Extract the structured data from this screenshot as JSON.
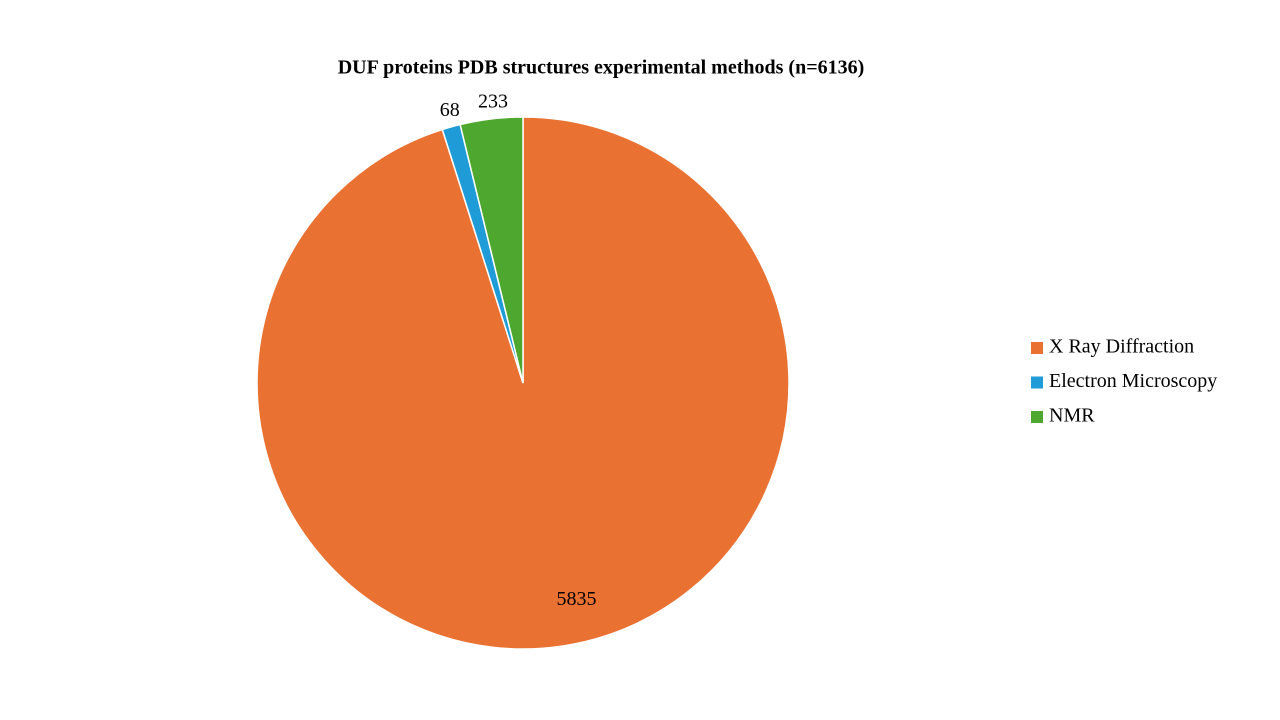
{
  "chart_data": {
    "type": "pie",
    "title": "DUF proteins PDB structures experimental methods (n=6136)",
    "categories": [
      "X Ray Diffraction",
      "Electron Microscopy",
      "NMR"
    ],
    "values": [
      5835,
      68,
      233
    ],
    "colors": [
      "#e97132",
      "#1f9bd7",
      "#4ea72e"
    ],
    "legend": "right"
  }
}
